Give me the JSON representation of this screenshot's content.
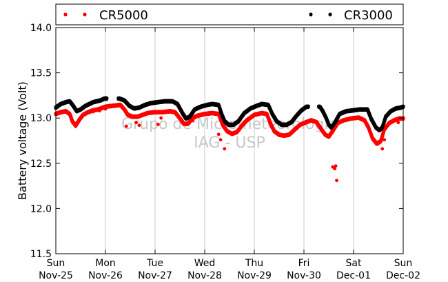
{
  "chart_data": {
    "type": "scatter",
    "title": "",
    "xlabel": "",
    "ylabel": "Battery voltage (Volt)",
    "ylim": [
      11.5,
      14.0
    ],
    "y_ticks": [
      "11.5",
      "12.0",
      "12.5",
      "13.0",
      "13.5",
      "14.0"
    ],
    "x_range_days": [
      0,
      7
    ],
    "x_ticks": [
      {
        "day": "Sun",
        "date": "Nov-25"
      },
      {
        "day": "Mon",
        "date": "Nov-26"
      },
      {
        "day": "Tue",
        "date": "Nov-27"
      },
      {
        "day": "Wed",
        "date": "Nov-28"
      },
      {
        "day": "Thu",
        "date": "Nov-29"
      },
      {
        "day": "Fri",
        "date": "Nov-30"
      },
      {
        "day": "Sat",
        "date": "Dec-01"
      },
      {
        "day": "Sun",
        "date": "Dec-02"
      }
    ],
    "grid": "vertical",
    "legend_placement": "top",
    "watermark": [
      "Grupo de Micrometeorologia",
      "IAG - USP"
    ],
    "series": [
      {
        "name": "CR5000",
        "color": "#ff0000",
        "points": [
          [
            0.0,
            13.05
          ],
          [
            0.1,
            13.07
          ],
          [
            0.2,
            13.08
          ],
          [
            0.28,
            13.05
          ],
          [
            0.33,
            12.97
          ],
          [
            0.4,
            12.92
          ],
          [
            0.48,
            12.99
          ],
          [
            0.55,
            13.04
          ],
          [
            0.65,
            13.07
          ],
          [
            0.75,
            13.09
          ],
          [
            0.85,
            13.1
          ],
          [
            0.95,
            13.12
          ],
          [
            1.0,
            13.13
          ],
          [
            1.15,
            13.14
          ],
          [
            1.3,
            13.15
          ],
          [
            1.38,
            13.1
          ],
          [
            1.45,
            13.04
          ],
          [
            1.55,
            13.02
          ],
          [
            1.65,
            13.02
          ],
          [
            1.75,
            13.04
          ],
          [
            1.85,
            13.06
          ],
          [
            2.0,
            13.07
          ],
          [
            2.15,
            13.07
          ],
          [
            2.3,
            13.08
          ],
          [
            2.4,
            13.07
          ],
          [
            2.5,
            13.0
          ],
          [
            2.58,
            12.94
          ],
          [
            2.66,
            12.94
          ],
          [
            2.75,
            13.0
          ],
          [
            2.85,
            13.03
          ],
          [
            3.0,
            13.05
          ],
          [
            3.15,
            13.06
          ],
          [
            3.28,
            13.05
          ],
          [
            3.36,
            12.93
          ],
          [
            3.45,
            12.86
          ],
          [
            3.55,
            12.83
          ],
          [
            3.65,
            12.85
          ],
          [
            3.75,
            12.92
          ],
          [
            3.85,
            12.98
          ],
          [
            4.0,
            13.04
          ],
          [
            4.15,
            13.06
          ],
          [
            4.25,
            13.05
          ],
          [
            4.32,
            12.95
          ],
          [
            4.4,
            12.86
          ],
          [
            4.5,
            12.82
          ],
          [
            4.6,
            12.81
          ],
          [
            4.7,
            12.82
          ],
          [
            4.8,
            12.87
          ],
          [
            4.92,
            12.93
          ],
          [
            5.05,
            12.96
          ],
          [
            5.15,
            12.98
          ],
          [
            5.25,
            12.96
          ],
          [
            5.35,
            12.88
          ],
          [
            5.43,
            12.82
          ],
          [
            5.5,
            12.8
          ],
          [
            5.58,
            12.86
          ],
          [
            5.68,
            12.95
          ],
          [
            5.8,
            12.98
          ],
          [
            5.95,
            13.0
          ],
          [
            6.1,
            13.01
          ],
          [
            6.22,
            12.98
          ],
          [
            6.3,
            12.9
          ],
          [
            6.38,
            12.78
          ],
          [
            6.47,
            12.72
          ],
          [
            6.55,
            12.75
          ],
          [
            6.62,
            12.88
          ],
          [
            6.72,
            12.95
          ],
          [
            6.82,
            12.98
          ],
          [
            6.92,
            13.0
          ],
          [
            7.0,
            13.0
          ]
        ],
        "outliers": [
          [
            0.75,
            13.07
          ],
          [
            0.88,
            13.08
          ],
          [
            1.0,
            13.1
          ],
          [
            1.42,
            12.91
          ],
          [
            1.62,
            12.95
          ],
          [
            1.68,
            12.92
          ],
          [
            2.06,
            12.93
          ],
          [
            2.12,
            13.0
          ],
          [
            2.76,
            12.97
          ],
          [
            3.28,
            12.82
          ],
          [
            3.32,
            12.76
          ],
          [
            3.4,
            12.66
          ],
          [
            5.58,
            12.46
          ],
          [
            5.62,
            12.44
          ],
          [
            5.64,
            12.47
          ],
          [
            5.66,
            12.31
          ],
          [
            6.58,
            12.66
          ],
          [
            6.62,
            12.76
          ],
          [
            6.9,
            12.95
          ]
        ]
      },
      {
        "name": "CR3000",
        "color": "#000000",
        "points": [
          [
            0.0,
            13.12
          ],
          [
            0.1,
            13.16
          ],
          [
            0.2,
            13.18
          ],
          [
            0.28,
            13.19
          ],
          [
            0.35,
            13.14
          ],
          [
            0.42,
            13.08
          ],
          [
            0.5,
            13.1
          ],
          [
            0.6,
            13.14
          ],
          [
            0.75,
            13.18
          ],
          [
            0.9,
            13.2
          ],
          [
            0.98,
            13.22
          ],
          [
            1.28,
            13.22
          ],
          [
            1.38,
            13.2
          ],
          [
            1.48,
            13.14
          ],
          [
            1.58,
            13.11
          ],
          [
            1.68,
            13.12
          ],
          [
            1.8,
            13.15
          ],
          [
            1.92,
            13.17
          ],
          [
            2.05,
            13.18
          ],
          [
            2.2,
            13.19
          ],
          [
            2.35,
            13.19
          ],
          [
            2.45,
            13.16
          ],
          [
            2.55,
            13.06
          ],
          [
            2.62,
            13.0
          ],
          [
            2.7,
            13.02
          ],
          [
            2.8,
            13.1
          ],
          [
            2.92,
            13.13
          ],
          [
            3.05,
            13.15
          ],
          [
            3.15,
            13.16
          ],
          [
            3.28,
            13.15
          ],
          [
            3.34,
            13.05
          ],
          [
            3.4,
            12.97
          ],
          [
            3.48,
            12.93
          ],
          [
            3.58,
            12.93
          ],
          [
            3.68,
            12.97
          ],
          [
            3.8,
            13.06
          ],
          [
            3.92,
            13.11
          ],
          [
            4.05,
            13.14
          ],
          [
            4.15,
            13.16
          ],
          [
            4.28,
            13.15
          ],
          [
            4.36,
            13.05
          ],
          [
            4.45,
            12.97
          ],
          [
            4.55,
            12.93
          ],
          [
            4.65,
            12.93
          ],
          [
            4.75,
            12.96
          ],
          [
            4.85,
            13.03
          ],
          [
            4.95,
            13.09
          ],
          [
            5.0,
            13.11
          ],
          [
            5.05,
            13.13
          ],
          [
            5.32,
            13.13
          ],
          [
            5.38,
            13.08
          ],
          [
            5.45,
            13.0
          ],
          [
            5.5,
            12.93
          ],
          [
            5.55,
            12.9
          ],
          [
            5.62,
            12.95
          ],
          [
            5.72,
            13.05
          ],
          [
            5.85,
            13.08
          ],
          [
            6.0,
            13.09
          ],
          [
            6.12,
            13.1
          ],
          [
            6.28,
            13.1
          ],
          [
            6.35,
            13.0
          ],
          [
            6.45,
            12.9
          ],
          [
            6.52,
            12.87
          ],
          [
            6.58,
            12.9
          ],
          [
            6.65,
            13.02
          ],
          [
            6.75,
            13.08
          ],
          [
            6.85,
            13.11
          ],
          [
            6.95,
            13.12
          ],
          [
            7.0,
            13.13
          ]
        ],
        "gaps": [
          [
            1.03,
            1.25
          ],
          [
            5.1,
            5.3
          ]
        ],
        "outliers": [
          [
            4.55,
            12.92
          ]
        ]
      }
    ]
  }
}
